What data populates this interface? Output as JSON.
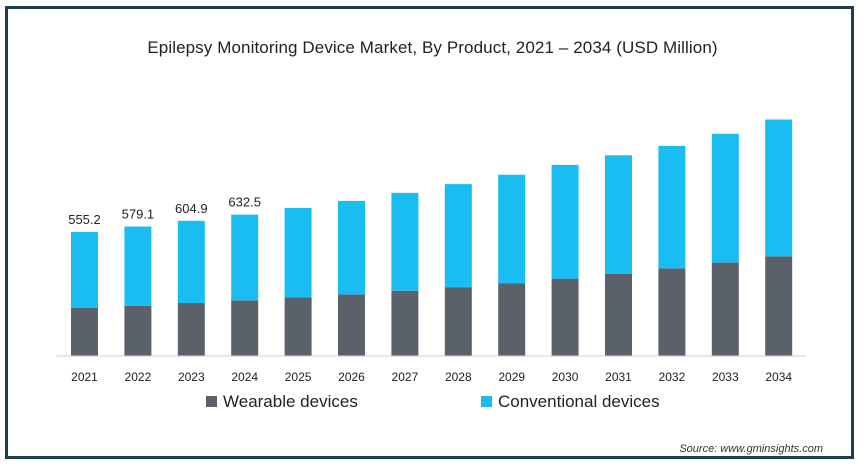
{
  "chart_data": {
    "type": "bar",
    "stacked": true,
    "title": "Epilepsy Monitoring Device Market, By Product, 2021 – 2034 (USD Million)",
    "categories": [
      "2021",
      "2022",
      "2023",
      "2024",
      "2025",
      "2026",
      "2027",
      "2028",
      "2029",
      "2030",
      "2031",
      "2032",
      "2033",
      "2034"
    ],
    "series": [
      {
        "name": "Wearable devices",
        "color": "#5b616b",
        "values": [
          215,
          225,
          237,
          249,
          262,
          276,
          292,
          308,
          326,
          346,
          368,
          392,
          418,
          446
        ]
      },
      {
        "name": "Conventional devices",
        "color": "#1abdf2",
        "values": [
          340.2,
          354.1,
          367.9,
          383.5,
          400,
          418,
          438,
          461,
          485,
          509,
          530,
          548,
          576,
          612
        ]
      }
    ],
    "data_labels": [
      "555.2",
      "579.1",
      "604.9",
      "632.5"
    ],
    "ylim": [
      0,
      1100
    ],
    "legend_position": "bottom",
    "grid": false
  },
  "source": "Source: www.gminsights.com"
}
